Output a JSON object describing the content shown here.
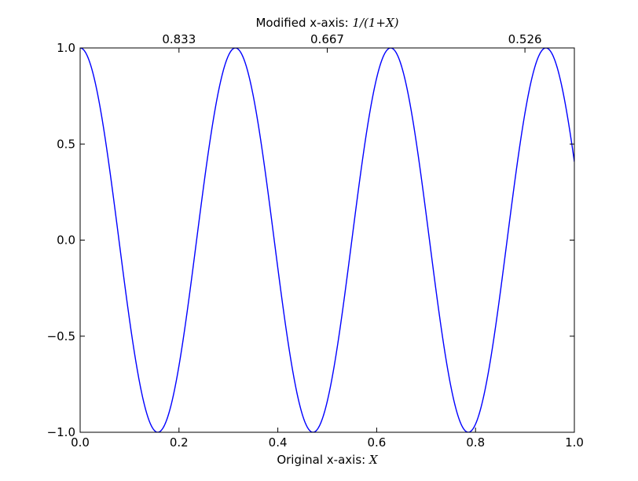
{
  "chart_data": {
    "type": "line",
    "function": "cos(20*X)",
    "x": [
      0.0,
      0.05,
      0.1,
      0.157,
      0.2,
      0.25,
      0.314,
      0.35,
      0.4,
      0.471,
      0.5,
      0.55,
      0.628,
      0.65,
      0.7,
      0.785,
      0.8,
      0.85,
      0.942,
      0.95,
      1.0
    ],
    "y": [
      1.0,
      0.54,
      -0.42,
      -1.0,
      -0.65,
      0.28,
      1.0,
      0.75,
      -0.15,
      -1.0,
      -0.84,
      0.0,
      1.0,
      0.91,
      0.14,
      -1.0,
      -0.96,
      -0.28,
      1.0,
      0.99,
      0.41
    ],
    "xlabel": {
      "prefix": "Original x-axis: ",
      "math": "X"
    },
    "top_xlabel": {
      "prefix": "Modified x-axis: ",
      "math": "1/(1+X)"
    },
    "ylabel": "",
    "title": "",
    "xlim": [
      0.0,
      1.0
    ],
    "ylim": [
      -1.0,
      1.0
    ],
    "x_ticks": [
      {
        "value": 0.0,
        "label": "0.0"
      },
      {
        "value": 0.2,
        "label": "0.2"
      },
      {
        "value": 0.4,
        "label": "0.4"
      },
      {
        "value": 0.6,
        "label": "0.6"
      },
      {
        "value": 0.8,
        "label": "0.8"
      },
      {
        "value": 1.0,
        "label": "1.0"
      }
    ],
    "y_ticks": [
      {
        "value": -1.0,
        "label": "−1.0"
      },
      {
        "value": -0.5,
        "label": "−0.5"
      },
      {
        "value": 0.0,
        "label": "0.0"
      },
      {
        "value": 0.5,
        "label": "0.5"
      },
      {
        "value": 1.0,
        "label": "1.0"
      }
    ],
    "top_ticks": [
      {
        "value": 0.2,
        "label": "0.833"
      },
      {
        "value": 0.5,
        "label": "0.667"
      },
      {
        "value": 0.9,
        "label": "0.526"
      }
    ],
    "grid": false,
    "line_color": "#0000ff"
  }
}
